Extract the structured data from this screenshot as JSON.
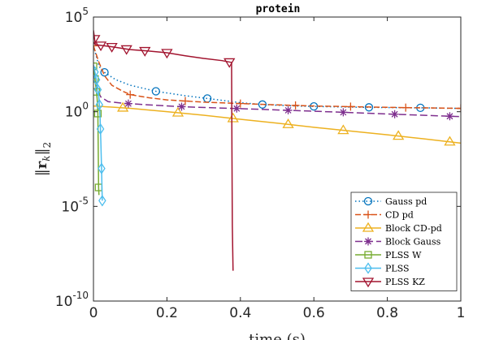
{
  "chart_data": {
    "type": "line",
    "title": "protein",
    "xlabel": "time (s)",
    "ylabel": "||r_k||_2",
    "xscale": "linear",
    "yscale": "log",
    "xlim": [
      0,
      1
    ],
    "ylim": [
      1e-10,
      100000.0
    ],
    "x_ticks": [
      0,
      0.2,
      0.4,
      0.6,
      0.8,
      1
    ],
    "x_tick_labels": [
      "0",
      "0.2",
      "0.4",
      "0.6",
      "0.8",
      "1"
    ],
    "y_ticks": [
      1e-10,
      1e-05,
      1,
      100000.0
    ],
    "y_tick_labels": [
      {
        "base": "10",
        "exp": "-10"
      },
      {
        "base": "10",
        "exp": "-5"
      },
      {
        "base": "10",
        "exp": "0"
      },
      {
        "base": "10",
        "exp": "5"
      }
    ],
    "grid": false,
    "legend_position": "bottom-right",
    "series": [
      {
        "name": "Gauss pd",
        "color": "#0072BD",
        "dash": "1.5 3",
        "marker": "circle",
        "points": [
          [
            0,
            3000
          ],
          [
            0.015,
            250
          ],
          [
            0.03,
            120
          ],
          [
            0.06,
            50
          ],
          [
            0.1,
            25
          ],
          [
            0.17,
            12
          ],
          [
            0.25,
            7
          ],
          [
            0.31,
            5
          ],
          [
            0.4,
            3
          ],
          [
            0.46,
            2.4
          ],
          [
            0.55,
            2.0
          ],
          [
            0.6,
            1.9
          ],
          [
            0.7,
            1.75
          ],
          [
            0.75,
            1.7
          ],
          [
            0.85,
            1.62
          ],
          [
            0.89,
            1.6
          ],
          [
            1.0,
            1.5
          ]
        ],
        "markers_x": [
          0.03,
          0.17,
          0.31,
          0.46,
          0.6,
          0.75,
          0.89
        ]
      },
      {
        "name": "CD pd",
        "color": "#D95319",
        "dash": "7 3",
        "marker": "plus",
        "points": [
          [
            0,
            3000
          ],
          [
            0.005,
            1500
          ],
          [
            0.015,
            400
          ],
          [
            0.03,
            80
          ],
          [
            0.05,
            25
          ],
          [
            0.08,
            12
          ],
          [
            0.1,
            8
          ],
          [
            0.15,
            5.5
          ],
          [
            0.2,
            4.2
          ],
          [
            0.3,
            3.2
          ],
          [
            0.4,
            2.7
          ],
          [
            0.5,
            2.3
          ],
          [
            0.6,
            2.0
          ],
          [
            0.7,
            1.85
          ],
          [
            0.8,
            1.7
          ],
          [
            0.9,
            1.6
          ],
          [
            1.0,
            1.5
          ]
        ],
        "markers_x": [
          0.0,
          0.1,
          0.25,
          0.4,
          0.55,
          0.7,
          0.85,
          1.0
        ]
      },
      {
        "name": "Block CD-pd",
        "color": "#EDB120",
        "dash": "",
        "marker": "triangle-up",
        "points": [
          [
            0,
            2.0
          ],
          [
            0.05,
            1.75
          ],
          [
            0.1,
            1.5
          ],
          [
            0.2,
            1.0
          ],
          [
            0.3,
            0.65
          ],
          [
            0.4,
            0.4
          ],
          [
            0.5,
            0.25
          ],
          [
            0.6,
            0.15
          ],
          [
            0.7,
            0.095
          ],
          [
            0.8,
            0.06
          ],
          [
            0.9,
            0.037
          ],
          [
            1.0,
            0.022
          ]
        ],
        "markers_x": [
          0.08,
          0.23,
          0.38,
          0.53,
          0.68,
          0.83,
          0.97
        ]
      },
      {
        "name": "Block Gauss",
        "color": "#7E2F8E",
        "dash": "9 4",
        "marker": "star",
        "points": [
          [
            0,
            150
          ],
          [
            0.005,
            40
          ],
          [
            0.01,
            15
          ],
          [
            0.02,
            6
          ],
          [
            0.04,
            3.4
          ],
          [
            0.08,
            2.8
          ],
          [
            0.15,
            2.3
          ],
          [
            0.25,
            1.8
          ],
          [
            0.4,
            1.45
          ],
          [
            0.55,
            1.15
          ],
          [
            0.7,
            0.9
          ],
          [
            0.85,
            0.7
          ],
          [
            1.0,
            0.55
          ]
        ],
        "markers_x": [
          0.095,
          0.24,
          0.39,
          0.53,
          0.68,
          0.82,
          0.97
        ]
      },
      {
        "name": "PLSS W",
        "color": "#77AC30",
        "dash": "",
        "marker": "square",
        "points": [
          [
            0,
            250
          ],
          [
            0.003,
            80
          ],
          [
            0.006,
            25
          ],
          [
            0.01,
            5
          ],
          [
            0.012,
            0.8
          ],
          [
            0.013,
            0.01
          ],
          [
            0.014,
            0.0001
          ],
          [
            0.015,
            4e-05
          ]
        ],
        "markers_x": [
          0.0,
          0.004,
          0.008,
          0.012,
          0.014
        ]
      },
      {
        "name": "PLSS",
        "color": "#4DBEEE",
        "dash": "",
        "marker": "diamond",
        "points": [
          [
            0,
            300
          ],
          [
            0.005,
            100
          ],
          [
            0.01,
            30
          ],
          [
            0.015,
            5
          ],
          [
            0.018,
            0.5
          ],
          [
            0.02,
            0.03
          ],
          [
            0.022,
            0.001
          ],
          [
            0.024,
            2e-05
          ]
        ],
        "markers_x": [
          0.004,
          0.008,
          0.012,
          0.016,
          0.019,
          0.022,
          0.024
        ]
      },
      {
        "name": "PLSS KZ",
        "color": "#A2142F",
        "dash": "",
        "marker": "triangle-down",
        "points": [
          [
            0,
            20000
          ],
          [
            0.005,
            3500
          ],
          [
            0.015,
            3300
          ],
          [
            0.05,
            2700
          ],
          [
            0.1,
            1900
          ],
          [
            0.15,
            1600
          ],
          [
            0.2,
            1300
          ],
          [
            0.25,
            900
          ],
          [
            0.3,
            650
          ],
          [
            0.35,
            500
          ],
          [
            0.376,
            400
          ],
          [
            0.377,
            0.01
          ],
          [
            0.378,
            1e-06
          ],
          [
            0.38,
            4e-09
          ]
        ],
        "markers_x": [
          0.003,
          0.02,
          0.05,
          0.09,
          0.14,
          0.2,
          0.37
        ]
      }
    ]
  }
}
